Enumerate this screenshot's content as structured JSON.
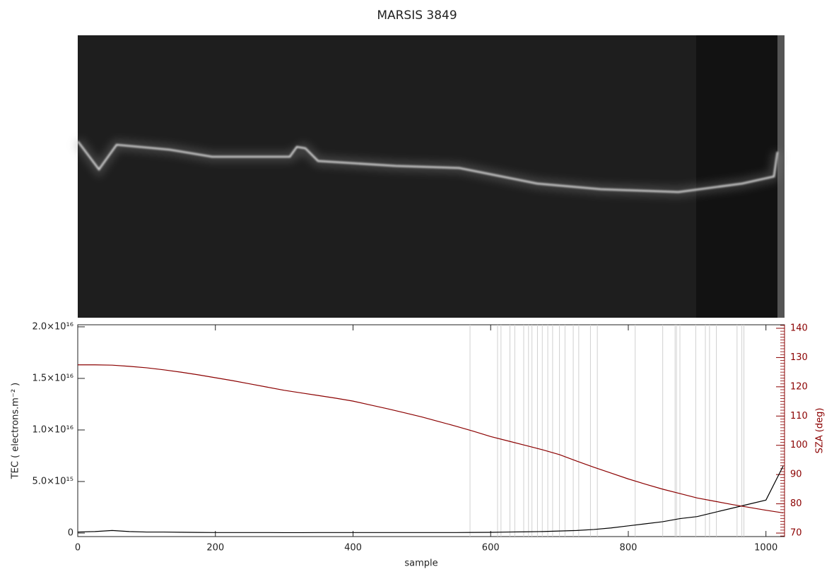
{
  "chart_data": {
    "type": "line",
    "title": "MARSIS 3849",
    "x_label": "sample",
    "y_label": "TEC ( electrons.m⁻² )",
    "y2_label": "SZA (deg)",
    "xlim": [
      0,
      1027
    ],
    "xticks": [
      0,
      200,
      400,
      600,
      800,
      1000
    ],
    "ylim": [
      -340000000000000.0,
      2.02e+16
    ],
    "yticks": [
      0,
      {
        "value": 5000000000000000.0,
        "label": "5.0×10¹⁵"
      },
      {
        "value": 1e+16,
        "label": "1.0×10¹⁶"
      },
      {
        "value": 1.5e+16,
        "label": "1.5×10¹⁶"
      },
      {
        "value": 2e+16,
        "label": "2.0×10¹⁶"
      }
    ],
    "y2lim": [
      68.8,
      141.2
    ],
    "y2ticks": [
      70,
      80,
      90,
      100,
      110,
      120,
      130,
      140
    ],
    "y2_color": "#8b0000",
    "vlines_color": "#d0d0d0",
    "vlines": [
      570,
      610,
      615,
      628,
      635,
      648,
      655,
      660,
      668,
      675,
      683,
      690,
      700,
      708,
      720,
      728,
      745,
      755,
      810,
      850,
      868,
      870,
      875,
      898,
      912,
      918,
      928,
      958,
      965,
      968
    ],
    "x": [
      0,
      25,
      50,
      75,
      100,
      125,
      150,
      175,
      200,
      225,
      250,
      275,
      300,
      325,
      350,
      375,
      400,
      425,
      450,
      475,
      500,
      525,
      550,
      575,
      600,
      625,
      650,
      675,
      700,
      725,
      750,
      775,
      800,
      825,
      850,
      875,
      900,
      925,
      950,
      975,
      1000,
      1025
    ],
    "series": [
      {
        "color": "#000000",
        "values": [
          100000000000000.0,
          150000000000000.0,
          250000000000000.0,
          150000000000000.0,
          100000000000000.0,
          100000000000000.0,
          80000000000000.0,
          60000000000000.0,
          50000000000000.0,
          50000000000000.0,
          50000000000000.0,
          50000000000000.0,
          40000000000000.0,
          40000000000000.0,
          50000000000000.0,
          50000000000000.0,
          50000000000000.0,
          50000000000000.0,
          50000000000000.0,
          50000000000000.0,
          50000000000000.0,
          50000000000000.0,
          50000000000000.0,
          60000000000000.0,
          70000000000000.0,
          100000000000000.0,
          120000000000000.0,
          150000000000000.0,
          200000000000000.0,
          250000000000000.0,
          350000000000000.0,
          500000000000000.0,
          700000000000000.0,
          900000000000000.0,
          1100000000000000.0,
          1400000000000000.0,
          1600000000000000.0,
          2000000000000000.0,
          2400000000000000.0,
          2800000000000000.0,
          3200000000000000.0,
          6500000000000000.0
        ]
      },
      {
        "color": "#8b0000",
        "axis": "y2",
        "values": [
          127.5,
          127.5,
          127.4,
          127,
          126.5,
          125.8,
          125,
          124.1,
          123.1,
          122.1,
          121,
          119.9,
          118.8,
          117.9,
          117,
          116.1,
          115.1,
          113.8,
          112.5,
          111.1,
          109.7,
          108.1,
          106.5,
          104.8,
          103,
          101.5,
          100,
          98.5,
          96.8,
          94.6,
          92.5,
          90.5,
          88.5,
          86.7,
          85,
          83.5,
          82,
          80.9,
          79.8,
          78.8,
          77.8,
          76.9
        ]
      }
    ]
  }
}
